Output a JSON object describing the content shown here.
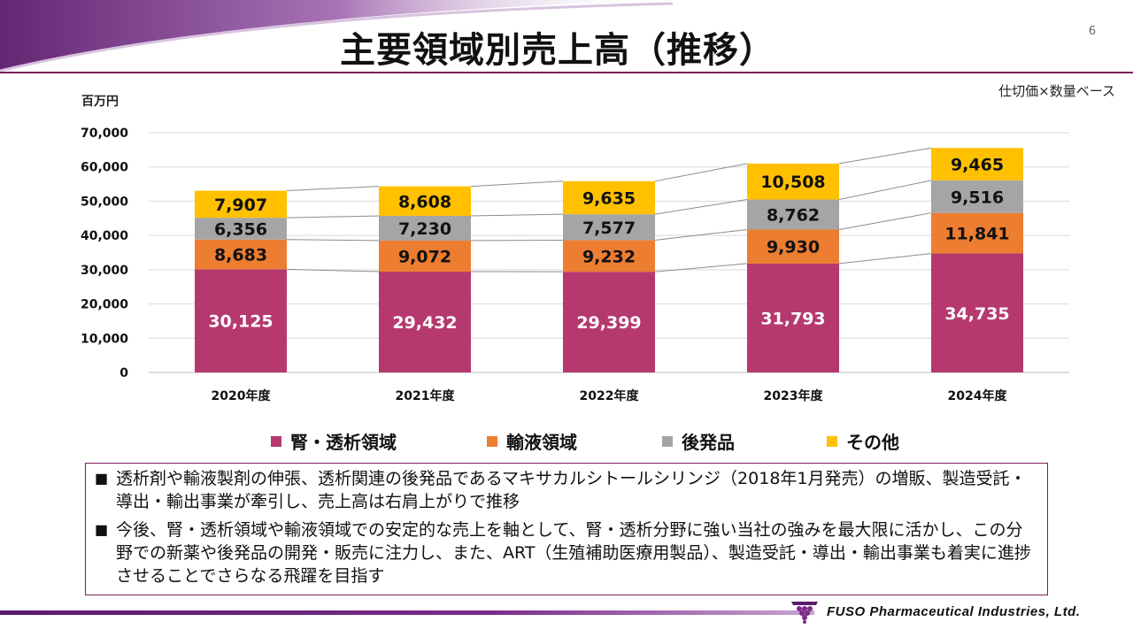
{
  "page": {
    "title": "主要領域別売上高（推移）",
    "page_number": "6",
    "basis_note": "仕切価×数量ベース",
    "unit": "百万円",
    "company": "FUSO Pharmaceutical Industries, Ltd."
  },
  "colors": {
    "accent": "#7a1e5c",
    "kidney": "#b5396f",
    "infusion": "#ed7d31",
    "generic": "#a5a5a5",
    "other": "#ffc000"
  },
  "chart_data": {
    "type": "bar",
    "stacked": true,
    "categories": [
      "2020年度",
      "2021年度",
      "2022年度",
      "2023年度",
      "2024年度"
    ],
    "series": [
      {
        "name": "腎・透析領域",
        "values": [
          30125,
          29432,
          29399,
          31793,
          34735
        ],
        "labels": [
          "30,125",
          "29,432",
          "29,399",
          "31,793",
          "34,735"
        ],
        "color": "#b5396f",
        "label_color": "#ffffff"
      },
      {
        "name": "輸液領域",
        "values": [
          8683,
          9072,
          9232,
          9930,
          11841
        ],
        "labels": [
          "8,683",
          "9,072",
          "9,232",
          "9,930",
          "11,841"
        ],
        "color": "#ed7d31",
        "label_color": "#111111"
      },
      {
        "name": "後発品",
        "values": [
          6356,
          7230,
          7577,
          8762,
          9516
        ],
        "labels": [
          "6,356",
          "7,230",
          "7,577",
          "8,762",
          "9,516"
        ],
        "color": "#a5a5a5",
        "label_color": "#111111"
      },
      {
        "name": "その他",
        "values": [
          7907,
          8608,
          9635,
          10508,
          9465
        ],
        "labels": [
          "7,907",
          "8,608",
          "9,635",
          "10,508",
          "9,465"
        ],
        "color": "#ffc000",
        "label_color": "#111111"
      }
    ],
    "yticks": [
      "0",
      "10,000",
      "20,000",
      "30,000",
      "40,000",
      "50,000",
      "60,000",
      "70,000"
    ],
    "ylim": [
      0,
      70000
    ],
    "ylabel": "百万円",
    "grid": true,
    "series_lines": true,
    "legend_position": "bottom"
  },
  "notes": [
    {
      "bullet": "■",
      "text": "透析剤や輸液製剤の伸張、透析関連の後発品であるマキサカルシトールシリンジ（2018年1月発売）の増販、製造受託・導出・輸出事業が牽引し、売上高は右肩上がりで推移"
    },
    {
      "bullet": "■",
      "text": "今後、腎・透析領域や輸液領域での安定的な売上を軸として、腎・透析分野に強い当社の強みを最大限に活かし、この分野での新薬や後発品の開発・販売に注力し、また、ART（生殖補助医療用製品）、製造受託・導出・輸出事業も着実に進捗させることでさらなる飛躍を目指す"
    }
  ]
}
